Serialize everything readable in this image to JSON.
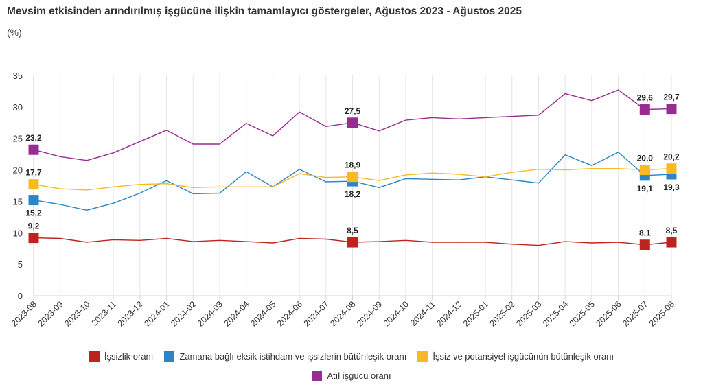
{
  "title": "Mevsim etkisinden arındırılmış işgücüne ilişkin tamamlayıcı göstergeler, Ağustos 2023 - Ağustos 2025",
  "subtitle": "(%)",
  "chart_data": {
    "type": "line",
    "title": "Mevsim etkisinden arındırılmış işgücüne ilişkin tamamlayıcı göstergeler, Ağustos 2023 - Ağustos 2025",
    "subtitle": "(%)",
    "ylim": [
      0,
      35
    ],
    "yticks": [
      0,
      5,
      10,
      15,
      20,
      25,
      30,
      35
    ],
    "grid": "vertical",
    "legend_position": "bottom",
    "categories": [
      "2023-08",
      "2023-09",
      "2023-10",
      "2023-11",
      "2023-12",
      "2024-01",
      "2024-02",
      "2024-03",
      "2024-04",
      "2024-05",
      "2024-06",
      "2024-07",
      "2024-08",
      "2024-09",
      "2024-10",
      "2024-11",
      "2024-12",
      "2025-01",
      "2025-02",
      "2025-03",
      "2025-04",
      "2025-05",
      "2025-06",
      "2025-07",
      "2025-08"
    ],
    "series": [
      {
        "name": "İşsizlik oranı",
        "color": "#c0231f",
        "values": [
          9.2,
          9.1,
          8.5,
          8.9,
          8.8,
          9.1,
          8.6,
          8.8,
          8.6,
          8.4,
          9.1,
          9.0,
          8.5,
          8.6,
          8.8,
          8.5,
          8.5,
          8.5,
          8.2,
          8.0,
          8.6,
          8.4,
          8.5,
          8.1,
          8.5
        ],
        "labeled_points": [
          {
            "index": 0,
            "label": "9,2",
            "pos": "above"
          },
          {
            "index": 12,
            "label": "8,5",
            "pos": "above"
          },
          {
            "index": 23,
            "label": "8,1",
            "pos": "above"
          },
          {
            "index": 24,
            "label": "8,5",
            "pos": "above"
          }
        ]
      },
      {
        "name": "Zamana bağlı eksik istihdam ve işsizlerin bütünleşik oranı",
        "color": "#2b86c8",
        "values": [
          15.2,
          14.5,
          13.6,
          14.7,
          16.3,
          18.3,
          16.2,
          16.3,
          19.7,
          17.3,
          20.1,
          18.1,
          18.2,
          17.2,
          18.6,
          18.5,
          18.4,
          18.9,
          18.4,
          17.9,
          22.4,
          20.7,
          22.8,
          19.1,
          19.3
        ],
        "labeled_points": [
          {
            "index": 0,
            "label": "15,2",
            "pos": "below"
          },
          {
            "index": 12,
            "label": "18,2",
            "pos": "below"
          },
          {
            "index": 23,
            "label": "19,1",
            "pos": "below"
          },
          {
            "index": 24,
            "label": "19,3",
            "pos": "below"
          }
        ]
      },
      {
        "name": "İşsiz ve potansiyel işgücünün bütünleşik oranı",
        "color": "#f7b924",
        "values": [
          17.7,
          17.0,
          16.8,
          17.3,
          17.7,
          17.8,
          17.2,
          17.3,
          17.3,
          17.3,
          19.4,
          18.8,
          18.9,
          18.3,
          19.2,
          19.5,
          19.3,
          18.9,
          19.6,
          20.1,
          20.0,
          20.2,
          20.2,
          20.0,
          20.2
        ],
        "labeled_points": [
          {
            "index": 0,
            "label": "17,7",
            "pos": "above"
          },
          {
            "index": 12,
            "label": "18,9",
            "pos": "above"
          },
          {
            "index": 23,
            "label": "20,0",
            "pos": "above"
          },
          {
            "index": 24,
            "label": "20,2",
            "pos": "above"
          }
        ]
      },
      {
        "name": "Atıl işgücü oranı",
        "color": "#972c91",
        "values": [
          23.2,
          22.1,
          21.5,
          22.7,
          24.5,
          26.3,
          24.1,
          24.1,
          27.4,
          25.4,
          29.2,
          26.9,
          27.5,
          26.2,
          27.9,
          28.3,
          28.1,
          28.3,
          28.5,
          28.7,
          32.1,
          31.0,
          32.7,
          29.6,
          29.7
        ],
        "labeled_points": [
          {
            "index": 0,
            "label": "23,2",
            "pos": "above"
          },
          {
            "index": 12,
            "label": "27,5",
            "pos": "above"
          },
          {
            "index": 23,
            "label": "29,6",
            "pos": "above"
          },
          {
            "index": 24,
            "label": "29,7",
            "pos": "above"
          }
        ]
      }
    ]
  }
}
